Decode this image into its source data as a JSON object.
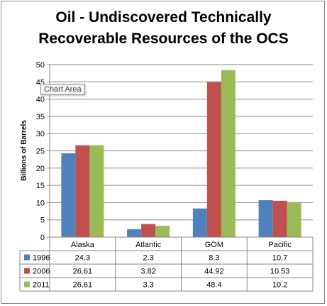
{
  "chart_data": {
    "type": "bar",
    "title_lines": [
      "Oil - Undiscovered Technically",
      "Recoverable Resources of the OCS"
    ],
    "ylabel": "Billions of Barrels",
    "ylim": [
      0,
      50
    ],
    "yticks": [
      0,
      5,
      10,
      15,
      20,
      25,
      30,
      35,
      40,
      45,
      50
    ],
    "grid": true,
    "legend": "data-table",
    "categories": [
      "Alaska",
      "Atlantic",
      "GOM",
      "Pacific"
    ],
    "series": [
      {
        "name": "1996",
        "color": "#4f81bd",
        "values": [
          24.3,
          2.3,
          8.3,
          10.7
        ],
        "labels": [
          "24.3",
          "2.3",
          "8.3",
          "10.7"
        ]
      },
      {
        "name": "2006",
        "color": "#c0504d",
        "values": [
          26.61,
          3.82,
          44.92,
          10.53
        ],
        "labels": [
          "26.61",
          "3.82",
          "44.92",
          "10.53"
        ]
      },
      {
        "name": "2011",
        "color": "#9bbb59",
        "values": [
          26.61,
          3.3,
          48.4,
          10.2
        ],
        "labels": [
          "26.61",
          "3.3",
          "48.4",
          "10.2"
        ]
      }
    ]
  },
  "tooltip": "Chart Area"
}
